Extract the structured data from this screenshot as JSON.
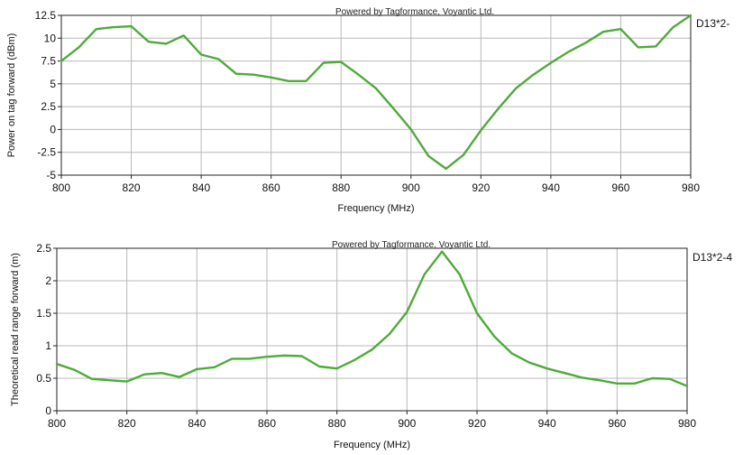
{
  "chart_data": [
    {
      "type": "line",
      "watermark": "Powered by Tagformance, Voyantic Ltd.",
      "xlabel": "Frequency (MHz)",
      "ylabel": "Power on tag forward (dBm)",
      "xlim": [
        800,
        980
      ],
      "ylim": [
        -5,
        12.5
      ],
      "xticks": [
        800,
        820,
        840,
        860,
        880,
        900,
        920,
        940,
        960,
        980
      ],
      "yticks": [
        -5,
        -2.5,
        0,
        2.5,
        5,
        7.5,
        10,
        12.5
      ],
      "ytick_labels": [
        "-5",
        "-2.5",
        "0",
        "2.5",
        "5",
        "7.5",
        "10",
        "12.5"
      ],
      "grid": true,
      "legend_label": "D13*2-",
      "series": [
        {
          "name": "D13*2-",
          "color": "#4faa3a",
          "x": [
            800,
            805,
            810,
            815,
            820,
            825,
            830,
            835,
            840,
            845,
            850,
            855,
            860,
            865,
            870,
            875,
            880,
            885,
            890,
            895,
            900,
            905,
            910,
            915,
            920,
            925,
            930,
            935,
            940,
            945,
            950,
            955,
            960,
            965,
            970,
            975,
            980
          ],
          "y": [
            7.5,
            9,
            11,
            11.2,
            11.3,
            9.6,
            9.4,
            10.3,
            8.2,
            7.7,
            6.1,
            6.0,
            5.7,
            5.3,
            5.3,
            7.3,
            7.4,
            6.0,
            4.5,
            2.3,
            0,
            -2.9,
            -4.3,
            -2.8,
            -0.1,
            2.3,
            4.5,
            6.0,
            7.3,
            8.5,
            9.5,
            10.7,
            11.0,
            9.0,
            9.1,
            11.2,
            12.5
          ]
        }
      ]
    },
    {
      "type": "line",
      "watermark": "Powered by Tagformance, Voyantic Ltd.",
      "xlabel": "Frequency (MHz)",
      "ylabel": "Theoretical read range forward (m)",
      "xlim": [
        800,
        980
      ],
      "ylim": [
        0,
        2.5
      ],
      "xticks": [
        800,
        820,
        840,
        860,
        880,
        900,
        920,
        940,
        960,
        980
      ],
      "yticks": [
        0,
        0.5,
        1,
        1.5,
        2,
        2.5
      ],
      "ytick_labels": [
        "0",
        "0.5",
        "1",
        "1.5",
        "2",
        "2.5"
      ],
      "grid": true,
      "legend_label": "D13*2-4",
      "series": [
        {
          "name": "D13*2-4",
          "color": "#4faa3a",
          "x": [
            800,
            805,
            810,
            815,
            820,
            825,
            830,
            835,
            840,
            845,
            850,
            855,
            860,
            865,
            870,
            875,
            880,
            885,
            890,
            895,
            900,
            905,
            910,
            915,
            920,
            925,
            930,
            935,
            940,
            945,
            950,
            955,
            960,
            965,
            970,
            975,
            980
          ],
          "y": [
            0.72,
            0.63,
            0.49,
            0.47,
            0.45,
            0.56,
            0.58,
            0.52,
            0.64,
            0.67,
            0.8,
            0.8,
            0.83,
            0.85,
            0.84,
            0.68,
            0.65,
            0.78,
            0.94,
            1.18,
            1.52,
            2.1,
            2.45,
            2.1,
            1.5,
            1.14,
            0.88,
            0.74,
            0.65,
            0.58,
            0.51,
            0.47,
            0.42,
            0.42,
            0.5,
            0.49,
            0.38
          ]
        }
      ]
    }
  ]
}
